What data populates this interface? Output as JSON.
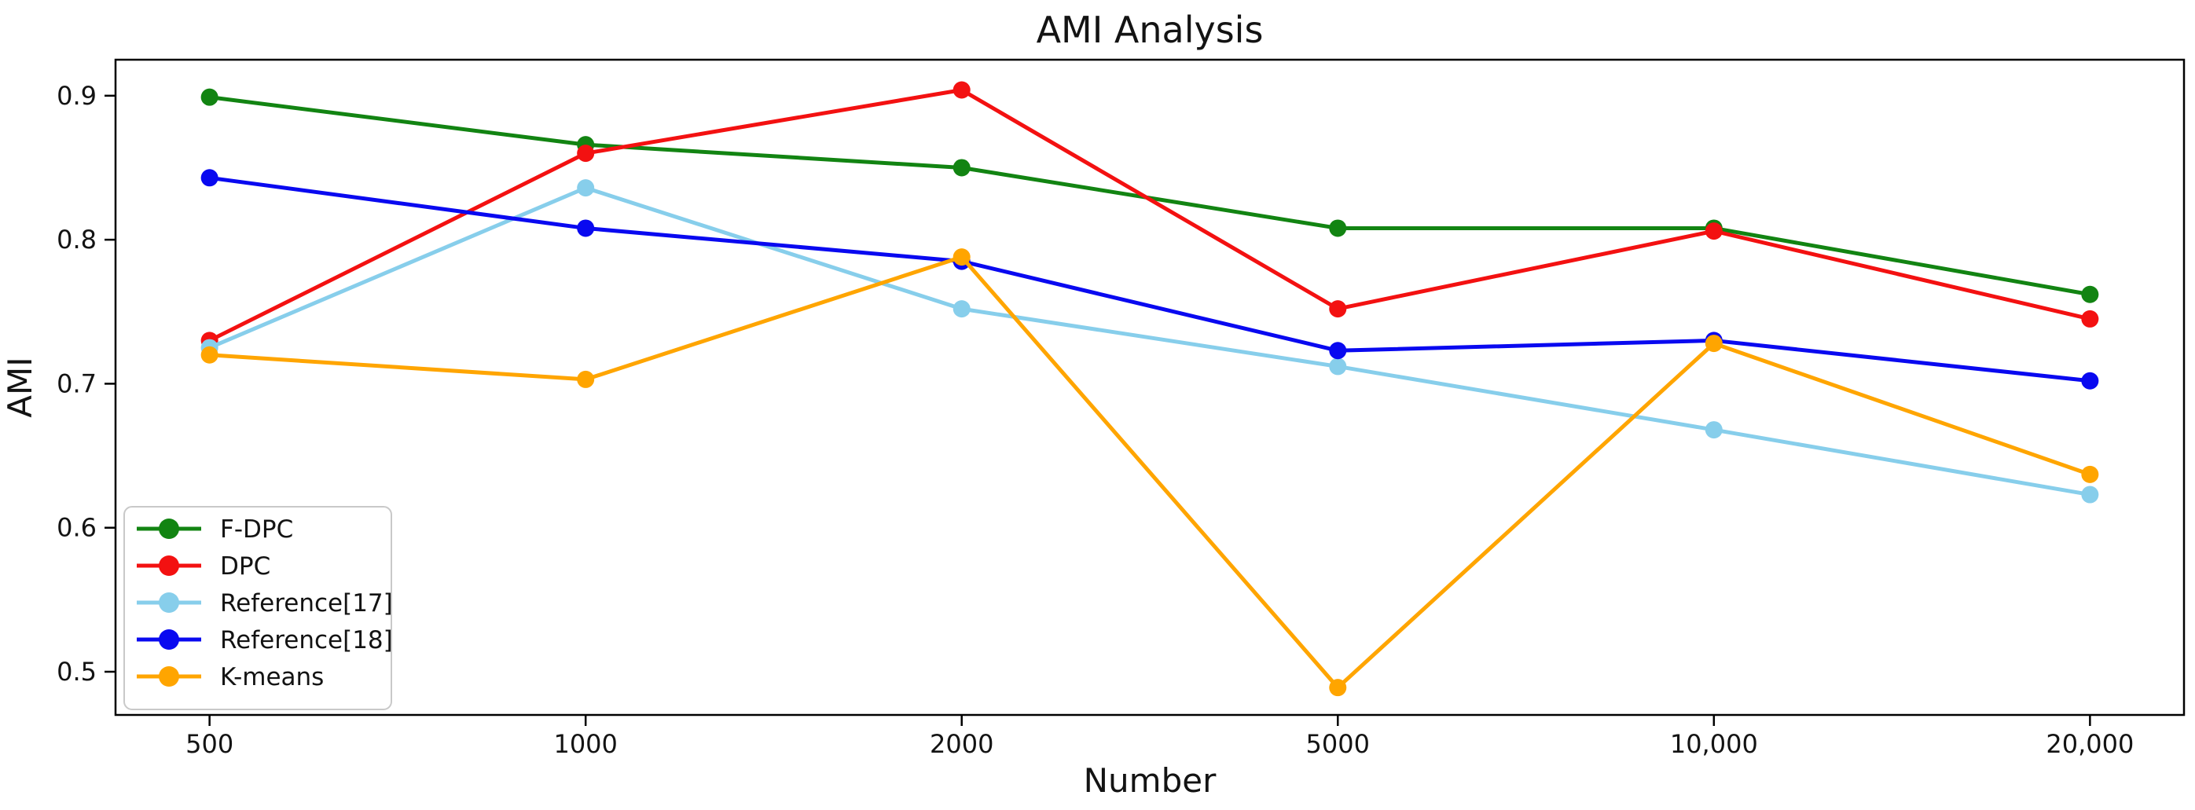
{
  "figure": {
    "background": "#ffffff",
    "axes_color": "#000000",
    "tick_color": "#1c1c1c"
  },
  "chart_data": {
    "type": "line",
    "title": "AMI Analysis",
    "xlabel": "Number",
    "ylabel": "AMI",
    "categories": [
      "500",
      "1000",
      "2000",
      "5000",
      "10,000",
      "20,000"
    ],
    "yticks": [
      "0.5",
      "0.6",
      "0.7",
      "0.8",
      "0.9"
    ],
    "ylim": [
      0.47,
      0.925
    ],
    "grid": false,
    "legend_position": "lower left",
    "marker": "circle",
    "series": [
      {
        "name": "F-DPC",
        "color": "#128412",
        "values": [
          0.899,
          0.866,
          0.85,
          0.808,
          0.808,
          0.762
        ]
      },
      {
        "name": "DPC",
        "color": "#f31111",
        "values": [
          0.73,
          0.86,
          0.904,
          0.752,
          0.806,
          0.745
        ]
      },
      {
        "name": "Reference[17]",
        "color": "#87CEEB",
        "values": [
          0.725,
          0.836,
          0.752,
          0.712,
          0.668,
          0.623
        ]
      },
      {
        "name": "Reference[18]",
        "color": "#0909f0",
        "values": [
          0.843,
          0.808,
          0.785,
          0.723,
          0.73,
          0.702
        ]
      },
      {
        "name": "K-means",
        "color": "#FFA500",
        "values": [
          0.72,
          0.703,
          0.788,
          0.489,
          0.728,
          0.637
        ]
      }
    ]
  }
}
